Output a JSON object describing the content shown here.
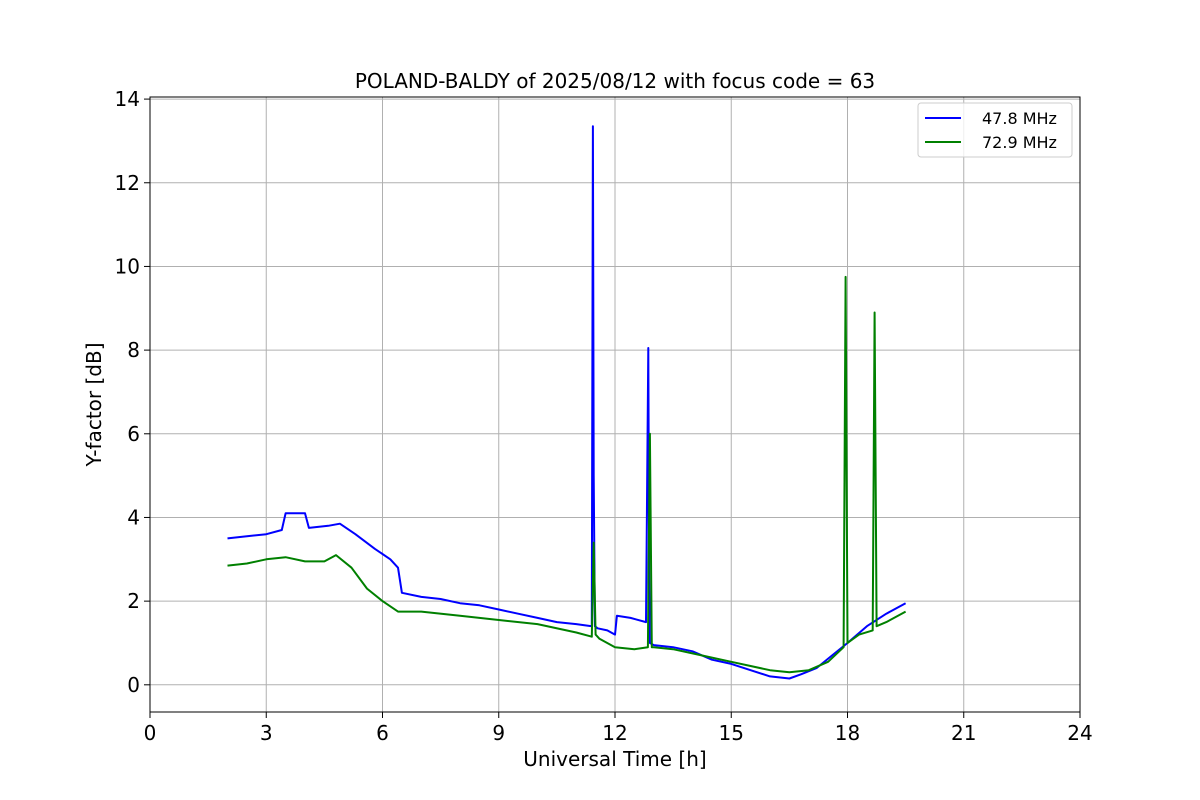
{
  "chart_data": {
    "type": "line",
    "title": "POLAND-BALDY of 2025/08/12 with focus code = 63",
    "xlabel": "Universal Time [h]",
    "ylabel": "Y-factor [dB]",
    "xlim": [
      0,
      24
    ],
    "ylim": [
      -0.65,
      14.05
    ],
    "x_ticks": [
      0,
      3,
      6,
      9,
      12,
      15,
      18,
      21,
      24
    ],
    "y_ticks": [
      0,
      2,
      4,
      6,
      8,
      10,
      12,
      14
    ],
    "grid": true,
    "legend_position": "top-right",
    "series": [
      {
        "name": "47.8 MHz",
        "color": "#0000ff",
        "x": [
          2.0,
          2.5,
          3.0,
          3.4,
          3.5,
          4.0,
          4.1,
          4.6,
          4.9,
          5.3,
          5.8,
          6.2,
          6.4,
          6.5,
          7.0,
          7.5,
          8.0,
          8.5,
          9.0,
          9.5,
          10.0,
          10.5,
          11.0,
          11.4,
          11.43,
          11.45,
          11.48,
          11.55,
          11.8,
          12.0,
          12.05,
          12.4,
          12.8,
          12.86,
          12.88,
          12.9,
          13.0,
          13.5,
          14.0,
          14.5,
          15.0,
          15.5,
          16.0,
          16.5,
          16.8,
          17.2,
          17.6,
          18.0,
          18.5,
          19.0,
          19.5
        ],
        "y": [
          3.5,
          3.55,
          3.6,
          3.7,
          4.1,
          4.1,
          3.75,
          3.8,
          3.85,
          3.6,
          3.25,
          3.0,
          2.8,
          2.2,
          2.1,
          2.05,
          1.95,
          1.9,
          1.8,
          1.7,
          1.6,
          1.5,
          1.45,
          1.4,
          13.35,
          5.0,
          1.4,
          1.35,
          1.3,
          1.2,
          1.65,
          1.6,
          1.5,
          8.05,
          3.0,
          1.0,
          0.95,
          0.9,
          0.8,
          0.6,
          0.5,
          0.35,
          0.2,
          0.15,
          0.25,
          0.4,
          0.7,
          1.0,
          1.4,
          1.7,
          1.95
        ]
      },
      {
        "name": "72.9 MHz",
        "color": "#008000",
        "x": [
          2.0,
          2.5,
          3.0,
          3.5,
          4.0,
          4.5,
          4.8,
          5.2,
          5.6,
          6.0,
          6.4,
          7.0,
          8.0,
          9.0,
          10.0,
          11.0,
          11.4,
          11.45,
          11.5,
          11.6,
          12.0,
          12.5,
          12.85,
          12.9,
          12.95,
          13.0,
          13.5,
          14.0,
          14.5,
          15.0,
          15.5,
          16.0,
          16.5,
          17.0,
          17.5,
          17.9,
          17.95,
          18.0,
          18.3,
          18.65,
          18.7,
          18.75,
          19.0,
          19.5
        ],
        "y": [
          2.85,
          2.9,
          3.0,
          3.05,
          2.95,
          2.95,
          3.1,
          2.8,
          2.3,
          2.0,
          1.75,
          1.75,
          1.65,
          1.55,
          1.45,
          1.25,
          1.15,
          3.4,
          1.2,
          1.1,
          0.9,
          0.85,
          0.9,
          6.0,
          0.9,
          0.9,
          0.85,
          0.75,
          0.65,
          0.55,
          0.45,
          0.35,
          0.3,
          0.35,
          0.55,
          0.9,
          9.75,
          1.0,
          1.2,
          1.3,
          8.9,
          1.4,
          1.5,
          1.75
        ]
      }
    ]
  }
}
